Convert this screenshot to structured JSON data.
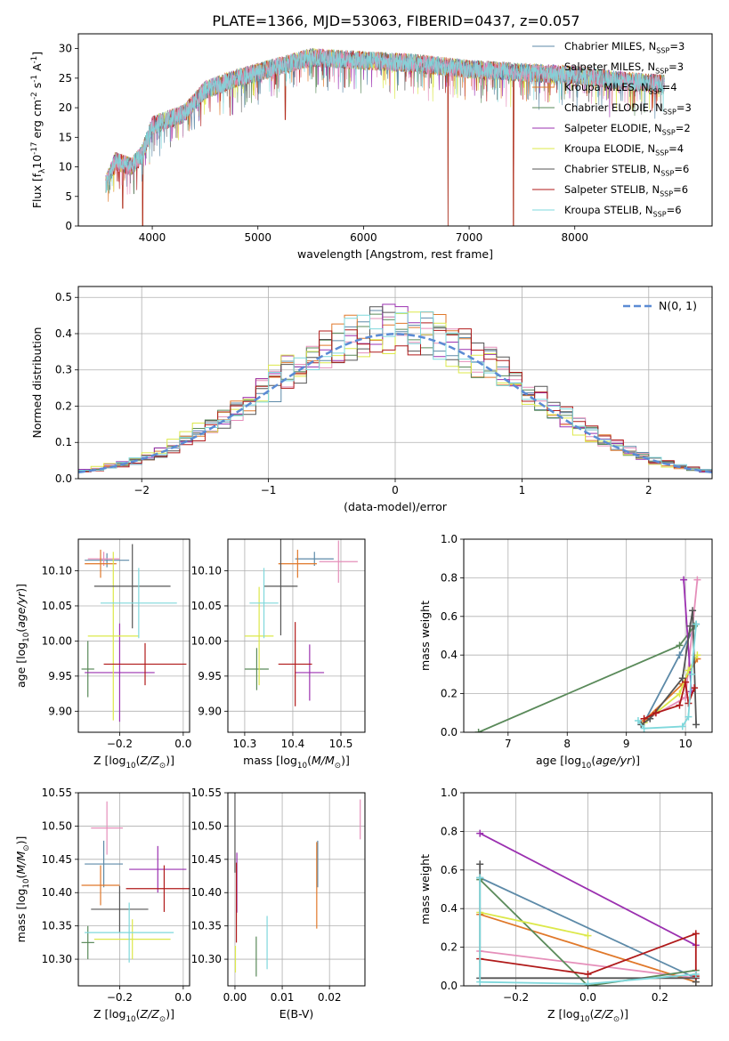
{
  "figure_title": "PLATE=1366, MJD=53063, FIBERID=0437, z=0.057",
  "models": [
    {
      "name": "Chabrier MILES, N$_{SSP}$=3",
      "label": "Chabrier MILES, N",
      "sub": "SSP",
      "n": "=3",
      "color": "#5d8aa8"
    },
    {
      "name": "Salpeter MILES, N$_{SSP}$=3",
      "label": "Salpeter MILES, N",
      "sub": "SSP",
      "n": "=3",
      "color": "#e58fba"
    },
    {
      "name": "Kroupa MILES, N$_{SSP}$=4",
      "label": "Kroupa MILES, N",
      "sub": "SSP",
      "n": "=4",
      "color": "#e0782a"
    },
    {
      "name": "Chabrier ELODIE, N$_{SSP}$=3",
      "label": "Chabrier ELODIE, N",
      "sub": "SSP",
      "n": "=3",
      "color": "#5a8a5a"
    },
    {
      "name": "Salpeter ELODIE, N$_{SSP}$=2",
      "label": "Salpeter ELODIE, N",
      "sub": "SSP",
      "n": "=2",
      "color": "#9b30b0"
    },
    {
      "name": "Kroupa ELODIE, N$_{SSP}$=4",
      "label": "Kroupa ELODIE, N",
      "sub": "SSP",
      "n": "=4",
      "color": "#dce84a"
    },
    {
      "name": "Chabrier STELIB, N$_{SSP}$=6",
      "label": "Chabrier STELIB, N",
      "sub": "SSP",
      "n": "=6",
      "color": "#555555"
    },
    {
      "name": "Salpeter STELIB, N$_{SSP}$=6",
      "label": "Salpeter STELIB, N",
      "sub": "SSP",
      "n": "=6",
      "color": "#b01a1a"
    },
    {
      "name": "Kroupa STELIB, N$_{SSP}$=6",
      "label": "Kroupa STELIB, N",
      "sub": "SSP",
      "n": "=6",
      "color": "#7fd8dc"
    }
  ],
  "chart_data": [
    {
      "id": "spectrum",
      "type": "line",
      "xlabel": "wavelength [Angstrom, rest frame]",
      "ylabel": "Flux [f$_\\lambda$10$^{-17}$ erg cm$^{-2}$ s$^{-1}$ A$^{-1}$]",
      "xlim": [
        3300,
        9300
      ],
      "ylim": [
        0,
        32.5
      ],
      "xticks": [
        4000,
        5000,
        6000,
        7000,
        8000
      ],
      "yticks": [
        0,
        5,
        10,
        15,
        20,
        25,
        30
      ],
      "grid": false,
      "legend": "top-right",
      "x_range": [
        3560,
        8850
      ],
      "envelope": [
        [
          3560,
          7
        ],
        [
          3650,
          11
        ],
        [
          3800,
          10
        ],
        [
          3900,
          12
        ],
        [
          4000,
          17
        ],
        [
          4300,
          19
        ],
        [
          4500,
          23
        ],
        [
          4800,
          25
        ],
        [
          5000,
          26
        ],
        [
          5200,
          27
        ],
        [
          5500,
          28.5
        ],
        [
          6000,
          28
        ],
        [
          6500,
          27.5
        ],
        [
          7000,
          26.5
        ],
        [
          7500,
          26
        ],
        [
          8000,
          25.5
        ],
        [
          8500,
          24.5
        ],
        [
          8850,
          24
        ]
      ],
      "dropouts": [
        [
          3720,
          3
        ],
        [
          3910,
          0
        ],
        [
          5260,
          18
        ],
        [
          6800,
          0
        ],
        [
          7420,
          0
        ]
      ]
    },
    {
      "id": "residuals",
      "type": "area",
      "xlabel": "(data-model)/error",
      "ylabel": "Normed distribution",
      "xlim": [
        -2.5,
        2.5
      ],
      "ylim": [
        0,
        0.53
      ],
      "xticks": [
        -2,
        -1,
        0,
        1,
        2
      ],
      "yticks": [
        0.0,
        0.1,
        0.2,
        0.3,
        0.4,
        0.5
      ],
      "grid": true,
      "legend": "top-right",
      "reference_curve": {
        "label": "$\\mathcal{N}(0,1)$",
        "label_text": "N(0, 1)",
        "mean": 0,
        "sigma": 1,
        "color": "#5b8bd4"
      },
      "bin_width": 0.1,
      "note": "nine step histograms scattered around the normal curve"
    },
    {
      "id": "age-vs-Z",
      "type": "scatter",
      "xlabel": "Z [log$_{10}$($Z/Z_\\odot$)]",
      "ylabel": "age  [log$_{10}$($age/yr$)]",
      "xlim": [
        -0.33,
        0.02
      ],
      "ylim": [
        9.87,
        10.145
      ],
      "xticks": [
        -0.2,
        0.0
      ],
      "yticks": [
        9.9,
        9.95,
        10.0,
        10.05,
        10.1
      ],
      "grid": true,
      "points": [
        {
          "model": 0,
          "x": -0.24,
          "xerr": 0.07,
          "y": 10.115,
          "yerr": 0.01
        },
        {
          "model": 1,
          "x": -0.25,
          "xerr": 0.05,
          "y": 10.117,
          "yerr": 0.01
        },
        {
          "model": 2,
          "x": -0.26,
          "xerr": 0.05,
          "y": 10.11,
          "yerr": 0.02
        },
        {
          "model": 3,
          "x": -0.3,
          "xerr": 0.02,
          "y": 9.96,
          "yerr": 0.04
        },
        {
          "model": 4,
          "x": -0.2,
          "xerr": 0.11,
          "y": 9.955,
          "yerr": 0.07
        },
        {
          "model": 5,
          "x": -0.22,
          "xerr": 0.08,
          "y": 10.007,
          "yerr": 0.12
        },
        {
          "model": 6,
          "x": -0.16,
          "xerr": 0.12,
          "y": 10.078,
          "yerr": 0.06
        },
        {
          "model": 7,
          "x": -0.12,
          "xerr": 0.13,
          "y": 9.967,
          "yerr": 0.03
        },
        {
          "model": 8,
          "x": -0.14,
          "xerr": 0.12,
          "y": 10.054,
          "yerr": 0.05
        }
      ]
    },
    {
      "id": "age-vs-mass",
      "type": "scatter",
      "xlabel": "mass [log$_{10}$($M/M_\\odot$)]",
      "ylabel": "",
      "xlim": [
        10.265,
        10.55
      ],
      "ylim": [
        9.87,
        10.145
      ],
      "xticks": [
        10.3,
        10.4,
        10.5
      ],
      "yticks": [
        9.9,
        9.95,
        10.0,
        10.05,
        10.1
      ],
      "grid": true,
      "points": [
        {
          "model": 0,
          "x": 10.445,
          "xerr": 0.04,
          "y": 10.117,
          "yerr": 0.01
        },
        {
          "model": 1,
          "x": 10.495,
          "xerr": 0.04,
          "y": 10.113,
          "yerr": 0.03
        },
        {
          "model": 2,
          "x": 10.41,
          "xerr": 0.04,
          "y": 10.11,
          "yerr": 0.02
        },
        {
          "model": 3,
          "x": 10.325,
          "xerr": 0.025,
          "y": 9.96,
          "yerr": 0.03
        },
        {
          "model": 4,
          "x": 10.435,
          "xerr": 0.03,
          "y": 9.955,
          "yerr": 0.04
        },
        {
          "model": 5,
          "x": 10.33,
          "xerr": 0.03,
          "y": 10.007,
          "yerr": 0.07
        },
        {
          "model": 6,
          "x": 10.375,
          "xerr": 0.035,
          "y": 10.078,
          "yerr": 0.07
        },
        {
          "model": 7,
          "x": 10.405,
          "xerr": 0.035,
          "y": 9.967,
          "yerr": 0.06
        },
        {
          "model": 8,
          "x": 10.34,
          "xerr": 0.03,
          "y": 10.054,
          "yerr": 0.05
        }
      ]
    },
    {
      "id": "weight-vs-age",
      "type": "line",
      "xlabel": "age  [log$_{10}$($age/yr$)]",
      "ylabel": "mass weight",
      "xlim": [
        6.25,
        10.45
      ],
      "ylim": [
        0,
        1.0
      ],
      "xticks": [
        7,
        8,
        9,
        10
      ],
      "yticks": [
        0.0,
        0.2,
        0.4,
        0.6,
        0.8,
        1.0
      ],
      "grid": true,
      "series": [
        {
          "model": 0,
          "x": [
            9.3,
            9.9,
            10.18
          ],
          "y": [
            0.05,
            0.4,
            0.56
          ]
        },
        {
          "model": 1,
          "x": [
            9.25,
            10.0,
            10.2
          ],
          "y": [
            0.05,
            0.18,
            0.79
          ]
        },
        {
          "model": 2,
          "x": [
            9.3,
            9.95,
            10.2
          ],
          "y": [
            0.06,
            0.25,
            0.38
          ]
        },
        {
          "model": 3,
          "x": [
            6.5,
            9.9,
            10.15
          ],
          "y": [
            0.0,
            0.45,
            0.55
          ]
        },
        {
          "model": 4,
          "x": [
            9.97,
            10.1
          ],
          "y": [
            0.79,
            0.21
          ]
        },
        {
          "model": 5,
          "x": [
            9.3,
            9.9,
            10.05,
            10.2
          ],
          "y": [
            0.05,
            0.2,
            0.32,
            0.4
          ]
        },
        {
          "model": 6,
          "x": [
            9.25,
            9.4,
            9.95,
            10.08,
            10.12,
            10.18
          ],
          "y": [
            0.04,
            0.07,
            0.28,
            0.55,
            0.63,
            0.04
          ]
        },
        {
          "model": 7,
          "x": [
            9.3,
            9.5,
            9.9,
            10.0,
            10.05,
            10.15
          ],
          "y": [
            0.07,
            0.1,
            0.14,
            0.26,
            0.15,
            0.23
          ]
        },
        {
          "model": 8,
          "x": [
            9.2,
            9.3,
            9.95,
            10.05,
            10.1,
            10.18
          ],
          "y": [
            0.06,
            0.02,
            0.03,
            0.08,
            0.3,
            0.56
          ]
        }
      ]
    },
    {
      "id": "mass-vs-Z",
      "type": "scatter",
      "xlabel": "Z [log$_{10}$($Z/Z_\\odot$)]",
      "ylabel": "mass [log$_{10}$($M/M_\\odot$)]",
      "xlim": [
        -0.33,
        0.02
      ],
      "ylim": [
        10.26,
        10.55
      ],
      "xticks": [
        -0.2,
        0.0
      ],
      "yticks": [
        10.3,
        10.35,
        10.4,
        10.45,
        10.5,
        10.55
      ],
      "grid": true,
      "points": [
        {
          "model": 0,
          "x": -0.25,
          "xerr": 0.06,
          "y": 10.443,
          "yerr": 0.035
        },
        {
          "model": 1,
          "x": -0.24,
          "xerr": 0.05,
          "y": 10.497,
          "yerr": 0.04
        },
        {
          "model": 2,
          "x": -0.26,
          "xerr": 0.06,
          "y": 10.411,
          "yerr": 0.03
        },
        {
          "model": 3,
          "x": -0.3,
          "xerr": 0.02,
          "y": 10.325,
          "yerr": 0.025
        },
        {
          "model": 4,
          "x": -0.08,
          "xerr": 0.09,
          "y": 10.435,
          "yerr": 0.035
        },
        {
          "model": 5,
          "x": -0.16,
          "xerr": 0.12,
          "y": 10.33,
          "yerr": 0.03
        },
        {
          "model": 6,
          "x": -0.2,
          "xerr": 0.09,
          "y": 10.375,
          "yerr": 0.035
        },
        {
          "model": 7,
          "x": -0.06,
          "xerr": 0.12,
          "y": 10.406,
          "yerr": 0.035
        },
        {
          "model": 8,
          "x": -0.17,
          "xerr": 0.14,
          "y": 10.34,
          "yerr": 0.045
        }
      ]
    },
    {
      "id": "mass-vs-EBV",
      "type": "scatter",
      "xlabel": "E(B-V)",
      "ylabel": "",
      "xlim": [
        -0.0015,
        0.0275
      ],
      "ylim": [
        10.26,
        10.55
      ],
      "xticks": [
        0.0,
        0.01,
        0.02
      ],
      "yticks": [
        10.3,
        10.35,
        10.4,
        10.45,
        10.5,
        10.55
      ],
      "grid": true,
      "points": [
        {
          "model": 0,
          "x": 0.0175,
          "xerr": 0,
          "y": 10.443,
          "yerr": 0.035
        },
        {
          "model": 1,
          "x": 0.0265,
          "xerr": 0,
          "y": 10.51,
          "yerr": 0.03
        },
        {
          "model": 2,
          "x": 0.0173,
          "xerr": 0,
          "y": 10.411,
          "yerr": 0.065
        },
        {
          "model": 3,
          "x": 0.0045,
          "xerr": 0,
          "y": 10.304,
          "yerr": 0.03
        },
        {
          "model": 4,
          "x": 0.0004,
          "xerr": 0,
          "y": 10.415,
          "yerr": 0.045
        },
        {
          "model": 5,
          "x": 0.0001,
          "xerr": 0,
          "y": 10.3,
          "yerr": 0.02
        },
        {
          "model": 6,
          "x": 0.0,
          "xerr": 0,
          "y": 10.49,
          "yerr": 0.06
        },
        {
          "model": 7,
          "x": 0.0003,
          "xerr": 0,
          "y": 10.385,
          "yerr": 0.06
        },
        {
          "model": 8,
          "x": 0.0068,
          "xerr": 0,
          "y": 10.325,
          "yerr": 0.04
        }
      ]
    },
    {
      "id": "weight-vs-Z",
      "type": "line",
      "xlabel": "Z [log$_{10}$($Z/Z_\\odot$)]",
      "ylabel": "mass weight",
      "xlim": [
        -0.345,
        0.345
      ],
      "ylim": [
        0,
        1.0
      ],
      "xticks": [
        -0.2,
        0.0,
        0.2
      ],
      "yticks": [
        0.0,
        0.2,
        0.4,
        0.6,
        0.8,
        1.0
      ],
      "grid": true,
      "series": [
        {
          "model": 0,
          "x": [
            -0.3,
            0.3
          ],
          "y": [
            0.56,
            0.04
          ]
        },
        {
          "model": 1,
          "x": [
            -0.3,
            0.3
          ],
          "y": [
            0.18,
            0.04
          ]
        },
        {
          "model": 2,
          "x": [
            -0.3,
            0.3
          ],
          "y": [
            0.37,
            0.02
          ]
        },
        {
          "model": 3,
          "x": [
            -0.3,
            0.0,
            0.3
          ],
          "y": [
            0.55,
            0.0,
            0.08
          ]
        },
        {
          "model": 4,
          "x": [
            -0.3,
            0.3
          ],
          "y": [
            0.79,
            0.21
          ]
        },
        {
          "model": 5,
          "x": [
            -0.3,
            0.0
          ],
          "y": [
            0.38,
            0.26
          ]
        },
        {
          "model": 6,
          "x": [
            -0.3,
            -0.3,
            0.3,
            0.3
          ],
          "y": [
            0.63,
            0.04,
            0.04,
            0.02
          ]
        },
        {
          "model": 7,
          "x": [
            -0.3,
            0.0,
            0.3,
            0.3
          ],
          "y": [
            0.14,
            0.06,
            0.27,
            0.05
          ]
        },
        {
          "model": 8,
          "x": [
            -0.3,
            -0.3,
            0.0,
            0.3
          ],
          "y": [
            0.56,
            0.02,
            0.01,
            0.06
          ]
        }
      ]
    }
  ]
}
